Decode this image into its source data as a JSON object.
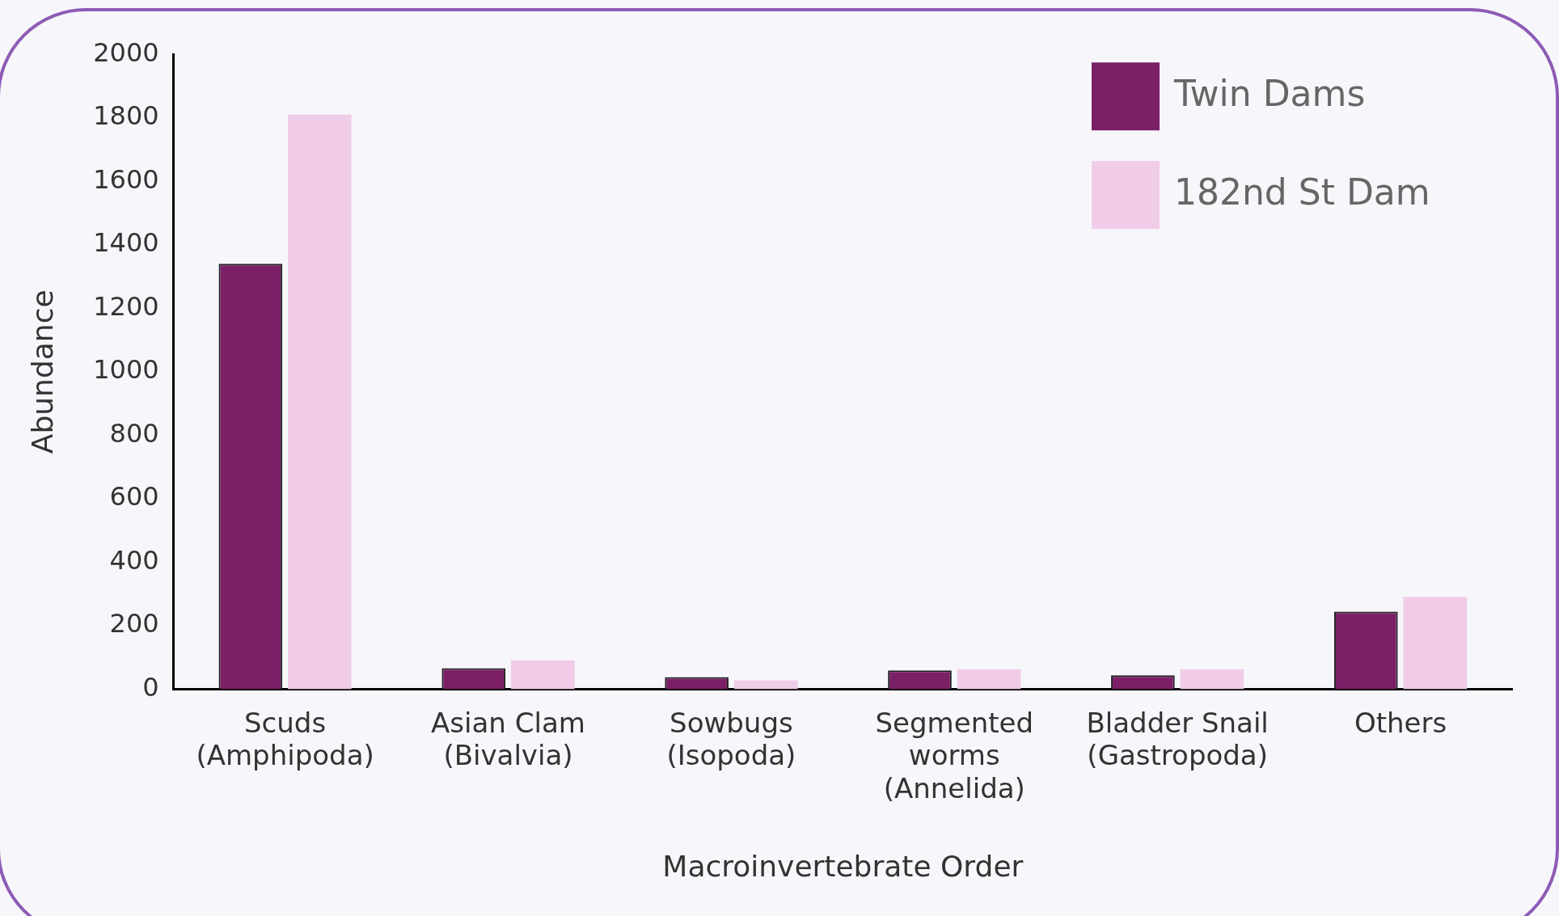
{
  "chart_data": {
    "type": "bar",
    "xlabel": "Macroinvertebrate Order",
    "ylabel": "Abundance",
    "categories": [
      "Scuds (Amphipoda)",
      "Asian Clam (Bivalvia)",
      "Sowbugs (Isopoda)",
      "Segmented worms (Annelida)",
      "Bladder Snail (Gastropoda)",
      "Others"
    ],
    "series": [
      {
        "name": "Twin Dams",
        "color": "#7b1f67",
        "values": [
          1340,
          66,
          38,
          59,
          44,
          244
        ]
      },
      {
        "name": "182nd St Dam",
        "color": "#f0cce9",
        "values": [
          1810,
          91,
          28,
          63,
          63,
          291
        ]
      }
    ],
    "ylim": [
      0,
      2000
    ],
    "yticks": [
      0,
      200,
      400,
      600,
      800,
      1000,
      1200,
      1400,
      1600,
      1800,
      2000
    ],
    "grid": false,
    "legend": "top right"
  }
}
